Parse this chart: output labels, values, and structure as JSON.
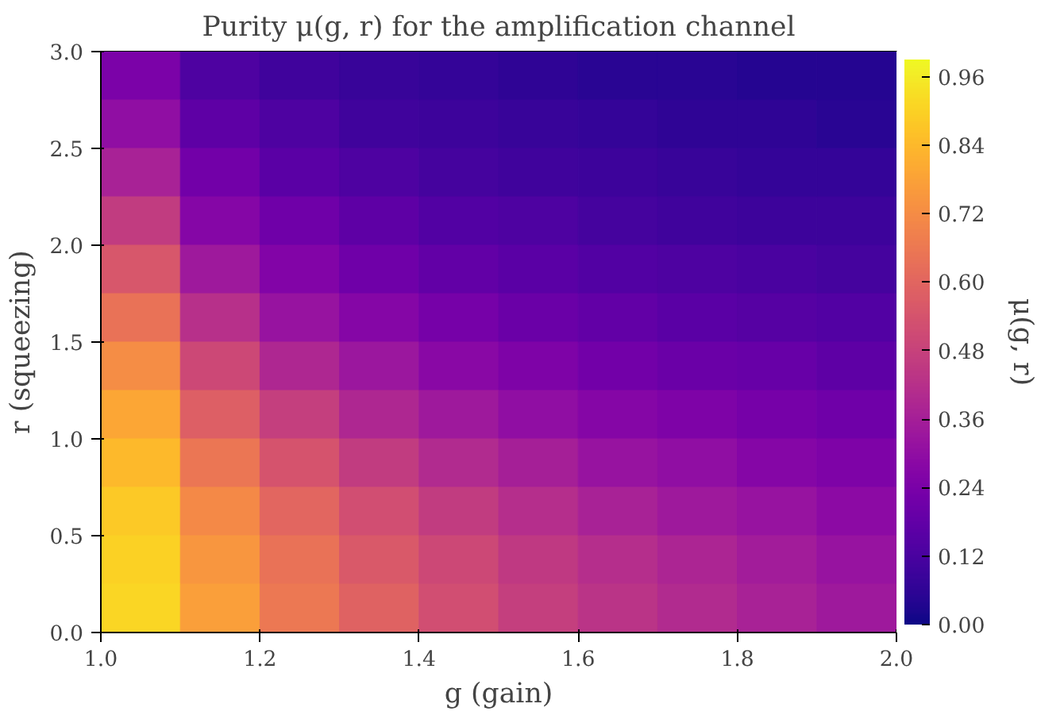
{
  "chart_data": {
    "type": "heatmap",
    "title": "Purity μ(g, r) for the amplification channel",
    "xlabel": "g (gain)",
    "ylabel": "r (squeezing)",
    "clabel": "μ(g, r)",
    "x": [
      1.05,
      1.15,
      1.25,
      1.35,
      1.45,
      1.55,
      1.65,
      1.75,
      1.85,
      1.95
    ],
    "y": [
      2.875,
      2.625,
      2.375,
      2.125,
      1.875,
      1.625,
      1.375,
      1.125,
      0.875,
      0.625,
      0.375,
      0.125
    ],
    "cells": [
      [
        0.24,
        0.13,
        0.1,
        0.08,
        0.07,
        0.06,
        0.05,
        0.05,
        0.04,
        0.04
      ],
      [
        0.3,
        0.17,
        0.13,
        0.1,
        0.09,
        0.08,
        0.07,
        0.06,
        0.06,
        0.05
      ],
      [
        0.37,
        0.22,
        0.16,
        0.13,
        0.11,
        0.1,
        0.09,
        0.08,
        0.07,
        0.07
      ],
      [
        0.46,
        0.27,
        0.21,
        0.17,
        0.14,
        0.13,
        0.11,
        0.1,
        0.09,
        0.09
      ],
      [
        0.55,
        0.34,
        0.26,
        0.21,
        0.18,
        0.16,
        0.14,
        0.13,
        0.12,
        0.11
      ],
      [
        0.64,
        0.42,
        0.32,
        0.27,
        0.23,
        0.2,
        0.18,
        0.16,
        0.15,
        0.14
      ],
      [
        0.72,
        0.5,
        0.39,
        0.33,
        0.28,
        0.25,
        0.22,
        0.2,
        0.19,
        0.17
      ],
      [
        0.79,
        0.58,
        0.47,
        0.39,
        0.34,
        0.3,
        0.27,
        0.25,
        0.23,
        0.21
      ],
      [
        0.84,
        0.65,
        0.54,
        0.46,
        0.4,
        0.36,
        0.32,
        0.3,
        0.27,
        0.25
      ],
      [
        0.88,
        0.71,
        0.6,
        0.52,
        0.46,
        0.41,
        0.37,
        0.34,
        0.32,
        0.29
      ],
      [
        0.9,
        0.75,
        0.64,
        0.56,
        0.5,
        0.45,
        0.41,
        0.38,
        0.35,
        0.32
      ],
      [
        0.91,
        0.77,
        0.66,
        0.59,
        0.52,
        0.47,
        0.43,
        0.4,
        0.37,
        0.34
      ]
    ],
    "xlim": [
      1.0,
      2.0
    ],
    "ylim": [
      0.0,
      3.0
    ],
    "xticks": [
      {
        "value": 1.0,
        "label": "1.0"
      },
      {
        "value": 1.2,
        "label": "1.2"
      },
      {
        "value": 1.4,
        "label": "1.4"
      },
      {
        "value": 1.6,
        "label": "1.6"
      },
      {
        "value": 1.8,
        "label": "1.8"
      },
      {
        "value": 2.0,
        "label": "2.0"
      }
    ],
    "yticks": [
      {
        "value": 0.0,
        "label": "0.0"
      },
      {
        "value": 0.5,
        "label": "0.5"
      },
      {
        "value": 1.0,
        "label": "1.0"
      },
      {
        "value": 1.5,
        "label": "1.5"
      },
      {
        "value": 2.0,
        "label": "2.0"
      },
      {
        "value": 2.5,
        "label": "2.5"
      },
      {
        "value": 3.0,
        "label": "3.0"
      }
    ],
    "clim": [
      0.0,
      0.99
    ],
    "cticks": [
      {
        "value": 0.0,
        "label": "0.00"
      },
      {
        "value": 0.12,
        "label": "0.12"
      },
      {
        "value": 0.24,
        "label": "0.24"
      },
      {
        "value": 0.36,
        "label": "0.36"
      },
      {
        "value": 0.48,
        "label": "0.48"
      },
      {
        "value": 0.6,
        "label": "0.60"
      },
      {
        "value": 0.72,
        "label": "0.72"
      },
      {
        "value": 0.84,
        "label": "0.84"
      },
      {
        "value": 0.96,
        "label": "0.96"
      }
    ]
  }
}
